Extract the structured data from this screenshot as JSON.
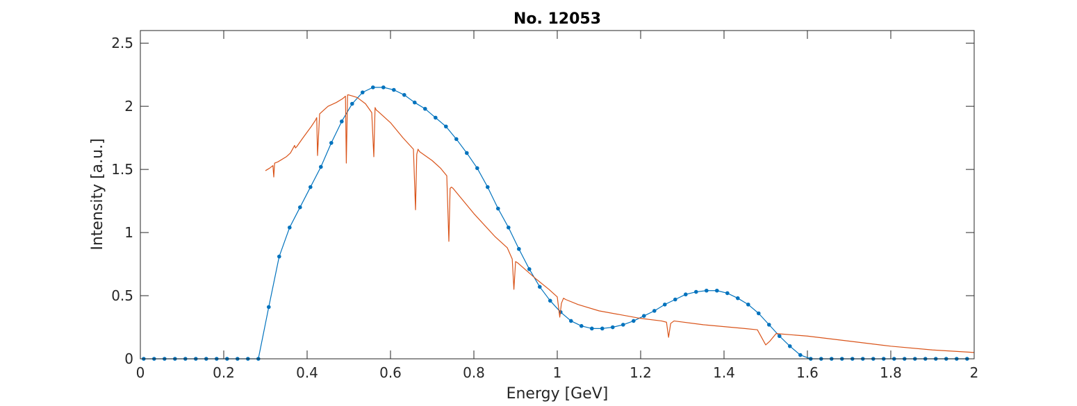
{
  "chart_data": {
    "type": "line",
    "title": "No. 12053",
    "xlabel": "Energy [GeV]",
    "ylabel": "Intensity [a.u.]",
    "xlim": [
      0,
      2
    ],
    "ylim": [
      0,
      2.6
    ],
    "x_ticks": [
      0,
      0.2,
      0.4,
      0.6,
      0.8,
      1,
      1.2,
      1.4,
      1.6,
      1.8,
      2
    ],
    "x_tick_labels": [
      "0",
      "0.2",
      "0.4",
      "0.6",
      "0.8",
      "1",
      "1.2",
      "1.4",
      "1.6",
      "1.8",
      "2"
    ],
    "y_ticks": [
      0,
      0.5,
      1,
      1.5,
      2,
      2.5
    ],
    "y_tick_labels": [
      "0",
      "0.5",
      "1",
      "1.5",
      "2",
      "2.5"
    ],
    "grid": false,
    "box": true,
    "series": [
      {
        "color": "#0072BD",
        "marker": "dot",
        "x": [
          0.008,
          0.033,
          0.058,
          0.083,
          0.108,
          0.133,
          0.158,
          0.183,
          0.208,
          0.233,
          0.258,
          0.283,
          0.308,
          0.333,
          0.358,
          0.383,
          0.408,
          0.433,
          0.458,
          0.483,
          0.508,
          0.533,
          0.558,
          0.583,
          0.608,
          0.633,
          0.658,
          0.683,
          0.708,
          0.733,
          0.758,
          0.783,
          0.808,
          0.833,
          0.858,
          0.883,
          0.908,
          0.933,
          0.958,
          0.983,
          1.008,
          1.033,
          1.058,
          1.083,
          1.108,
          1.133,
          1.158,
          1.183,
          1.208,
          1.233,
          1.258,
          1.283,
          1.308,
          1.333,
          1.358,
          1.383,
          1.408,
          1.433,
          1.458,
          1.483,
          1.508,
          1.533,
          1.558,
          1.583,
          1.608,
          1.633,
          1.658,
          1.683,
          1.708,
          1.733,
          1.758,
          1.783,
          1.808,
          1.833,
          1.858,
          1.883,
          1.908,
          1.933,
          1.958,
          1.983
        ],
        "y": [
          0,
          0,
          0,
          0,
          0,
          0,
          0,
          0,
          0,
          0,
          0,
          0,
          0.41,
          0.81,
          1.04,
          1.2,
          1.36,
          1.52,
          1.71,
          1.88,
          2.02,
          2.11,
          2.15,
          2.15,
          2.13,
          2.09,
          2.03,
          1.98,
          1.91,
          1.84,
          1.74,
          1.63,
          1.51,
          1.36,
          1.19,
          1.04,
          0.87,
          0.71,
          0.57,
          0.46,
          0.37,
          0.3,
          0.26,
          0.24,
          0.24,
          0.25,
          0.27,
          0.3,
          0.34,
          0.38,
          0.43,
          0.47,
          0.51,
          0.53,
          0.54,
          0.54,
          0.52,
          0.48,
          0.43,
          0.36,
          0.27,
          0.18,
          0.1,
          0.03,
          0,
          0,
          0,
          0,
          0,
          0,
          0,
          0,
          0,
          0,
          0,
          0,
          0,
          0,
          0,
          0
        ]
      },
      {
        "color": "#D95319",
        "marker": "none",
        "x": [
          0.3,
          0.31,
          0.318,
          0.32,
          0.322,
          0.33,
          0.35,
          0.36,
          0.37,
          0.372,
          0.375,
          0.39,
          0.41,
          0.42,
          0.423,
          0.425,
          0.43,
          0.45,
          0.47,
          0.485,
          0.492,
          0.494,
          0.497,
          0.5,
          0.52,
          0.54,
          0.555,
          0.56,
          0.563,
          0.566,
          0.57,
          0.6,
          0.63,
          0.655,
          0.66,
          0.663,
          0.666,
          0.67,
          0.7,
          0.72,
          0.735,
          0.74,
          0.743,
          0.746,
          0.75,
          0.8,
          0.85,
          0.88,
          0.892,
          0.896,
          0.9,
          0.905,
          0.95,
          0.98,
          1.0,
          1.006,
          1.01,
          1.015,
          1.02,
          1.05,
          1.1,
          1.15,
          1.2,
          1.25,
          1.262,
          1.267,
          1.272,
          1.28,
          1.35,
          1.45,
          1.48,
          1.49,
          1.5,
          1.51,
          1.525,
          1.6,
          1.7,
          1.8,
          1.9,
          2.0
        ],
        "y": [
          1.49,
          1.51,
          1.53,
          1.44,
          1.55,
          1.56,
          1.6,
          1.63,
          1.69,
          1.67,
          1.68,
          1.75,
          1.84,
          1.89,
          1.91,
          1.61,
          1.94,
          2.0,
          2.03,
          2.06,
          2.08,
          1.55,
          2.09,
          2.09,
          2.07,
          2.02,
          1.95,
          1.6,
          1.99,
          1.97,
          1.96,
          1.87,
          1.75,
          1.66,
          1.18,
          1.62,
          1.66,
          1.64,
          1.57,
          1.51,
          1.45,
          0.93,
          1.35,
          1.36,
          1.35,
          1.15,
          0.97,
          0.88,
          0.79,
          0.55,
          0.77,
          0.76,
          0.63,
          0.55,
          0.49,
          0.33,
          0.44,
          0.48,
          0.47,
          0.43,
          0.38,
          0.35,
          0.32,
          0.3,
          0.29,
          0.17,
          0.28,
          0.3,
          0.27,
          0.24,
          0.23,
          0.17,
          0.11,
          0.14,
          0.2,
          0.18,
          0.14,
          0.1,
          0.07,
          0.05
        ]
      }
    ]
  }
}
